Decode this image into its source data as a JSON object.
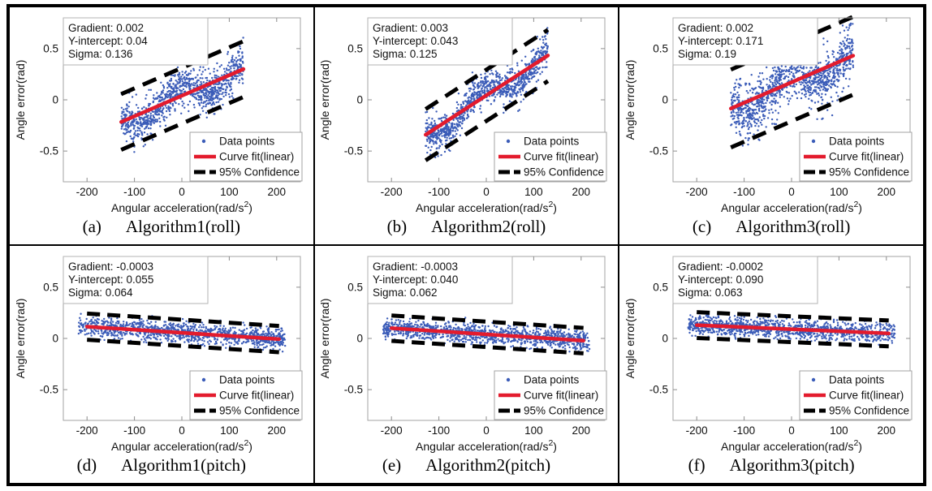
{
  "figure": {
    "colors": {
      "points": "#3B5CB8",
      "fit_line": "#E31B2D",
      "confidence": "#000000",
      "axis_box": "#A3A3A3",
      "tick": "#8C8C8C",
      "text": "#111111",
      "annotation_border": "#B3B3B3",
      "legend_border": "#A3A3A3",
      "outer_border": "#000000"
    }
  },
  "chart_data": {
    "type": "scatter",
    "shared": {
      "xlabel_base": "Angular acceleration(rad/s",
      "xlabel_sup": "2",
      "xlabel_end": ")",
      "ylabel": "Angle error(rad)",
      "xlim": [
        -250,
        250
      ],
      "ylim": [
        -0.8,
        0.8
      ],
      "x_ticks": [
        -200,
        -100,
        0,
        100,
        200
      ],
      "x_tick_labels": [
        "-200",
        "-100",
        "0",
        "100",
        "200"
      ],
      "y_ticks": [
        -0.5,
        0,
        0.5
      ],
      "y_tick_labels": [
        "-0.5",
        "0",
        "0.5"
      ],
      "grid": false,
      "legend_position": "lower right",
      "legend": [
        {
          "label": "Data points",
          "marker": "dot"
        },
        {
          "label": "Curve fit(linear)",
          "marker": "line"
        },
        {
          "label": "95% Confidence",
          "marker": "dash"
        }
      ]
    },
    "panels": [
      {
        "id": "a",
        "caption_label": "(a)",
        "caption_title": "Algorithm1(roll)",
        "gradient": 0.002,
        "y_intercept": 0.04,
        "sigma": 0.136,
        "annotation_lines": [
          "Gradient: 0.002",
          "Y-intercept: 0.04",
          "Sigma: 0.136"
        ],
        "confidence_offset": 0.272,
        "fit_x_range": [
          -128,
          130
        ],
        "scatter": {
          "n": 1000,
          "x_range": [
            -128,
            130
          ],
          "pattern": "roll",
          "seed": 101
        }
      },
      {
        "id": "b",
        "caption_label": "(b)",
        "caption_title": "Algorithm2(roll)",
        "gradient": 0.003,
        "y_intercept": 0.043,
        "sigma": 0.125,
        "annotation_lines": [
          "Gradient: 0.003",
          "Y-intercept: 0.043",
          "Sigma: 0.125"
        ],
        "confidence_offset": 0.25,
        "fit_x_range": [
          -128,
          130
        ],
        "scatter": {
          "n": 1000,
          "x_range": [
            -128,
            130
          ],
          "pattern": "roll",
          "seed": 202
        }
      },
      {
        "id": "c",
        "caption_label": "(c)",
        "caption_title": "Algorithm3(roll)",
        "gradient": 0.002,
        "y_intercept": 0.171,
        "sigma": 0.19,
        "annotation_lines": [
          "Gradient: 0.002",
          "Y-intercept: 0.171",
          "Sigma: 0.19"
        ],
        "confidence_offset": 0.38,
        "fit_x_range": [
          -128,
          130
        ],
        "scatter": {
          "n": 1150,
          "x_range": [
            -128,
            130
          ],
          "pattern": "roll-wide",
          "seed": 303
        }
      },
      {
        "id": "d",
        "caption_label": "(d)",
        "caption_title": "Algorithm1(pitch)",
        "gradient": -0.0003,
        "y_intercept": 0.055,
        "sigma": 0.064,
        "annotation_lines": [
          "Gradient: -0.0003",
          "Y-intercept: 0.055",
          "Sigma: 0.064"
        ],
        "confidence_offset": 0.128,
        "fit_x_range": [
          -200,
          205
        ],
        "scatter": {
          "n": 1150,
          "x_range": [
            -218,
            218
          ],
          "pattern": "pitch",
          "seed": 404
        }
      },
      {
        "id": "e",
        "caption_label": "(e)",
        "caption_title": "Algorithm2(pitch)",
        "gradient": -0.0003,
        "y_intercept": 0.04,
        "sigma": 0.062,
        "annotation_lines": [
          "Gradient: -0.0003",
          "Y-intercept: 0.040",
          "Sigma: 0.062"
        ],
        "confidence_offset": 0.124,
        "fit_x_range": [
          -200,
          205
        ],
        "scatter": {
          "n": 1150,
          "x_range": [
            -218,
            218
          ],
          "pattern": "pitch",
          "seed": 505
        }
      },
      {
        "id": "f",
        "caption_label": "(f)",
        "caption_title": "Algorithm3(pitch)",
        "gradient": -0.0002,
        "y_intercept": 0.09,
        "sigma": 0.063,
        "annotation_lines": [
          "Gradient: -0.0002",
          "Y-intercept: 0.090",
          "Sigma: 0.063"
        ],
        "confidence_offset": 0.126,
        "fit_x_range": [
          -200,
          205
        ],
        "scatter": {
          "n": 1150,
          "x_range": [
            -218,
            218
          ],
          "pattern": "pitch",
          "seed": 606
        }
      }
    ]
  }
}
